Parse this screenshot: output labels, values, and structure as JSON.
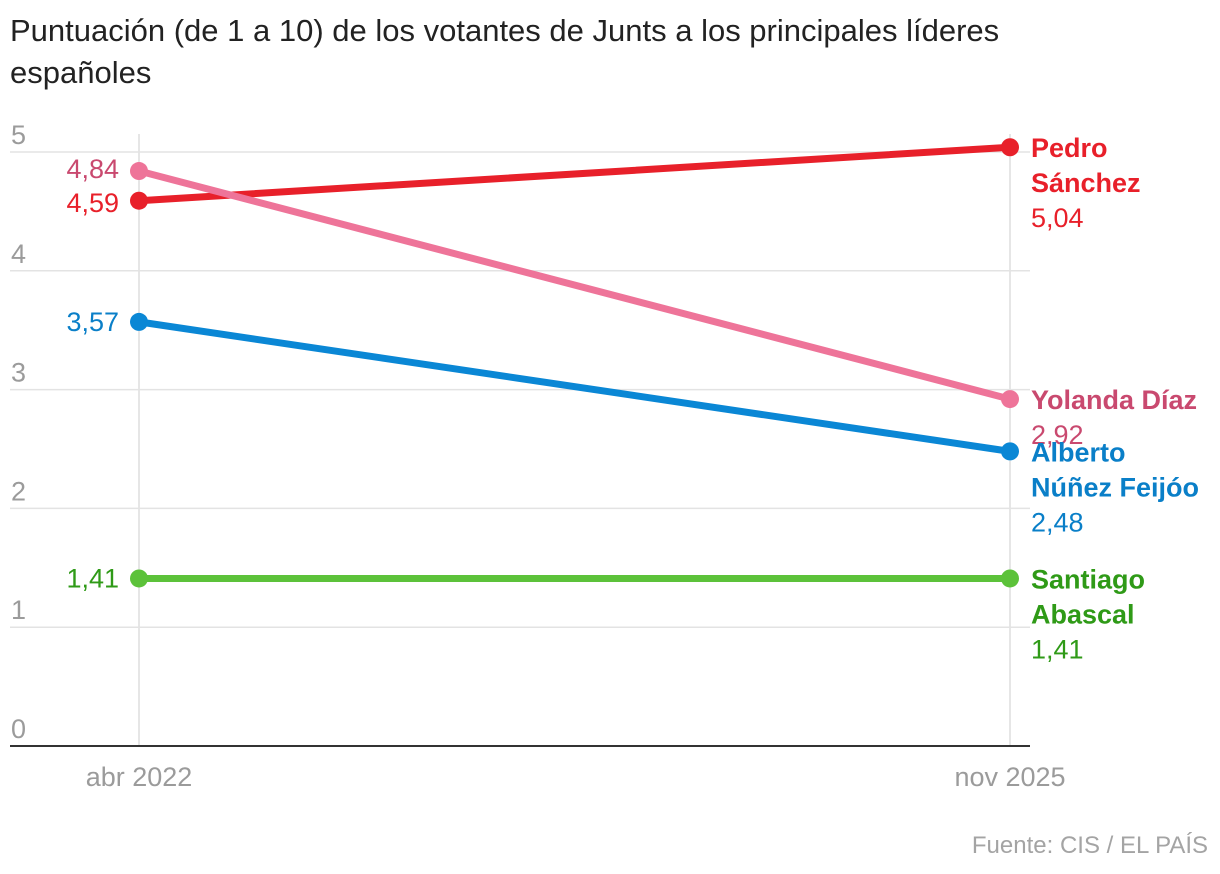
{
  "title": "Puntuación (de 1 a 10) de los votantes de Junts a los principales líderes españoles",
  "source": "Fuente: CIS / EL PAÍS",
  "chart_data": {
    "type": "line",
    "title": "Puntuación (de 1 a 10) de los votantes de Junts a los principales líderes españoles",
    "x": [
      "abr 2022",
      "nov 2025"
    ],
    "ylim": [
      0,
      5
    ],
    "yticks": [
      "0",
      "1",
      "2",
      "3",
      "4",
      "5"
    ],
    "grid": true,
    "series": [
      {
        "name": "Pedro Sánchez",
        "name_lines": [
          "Pedro",
          "Sánchez"
        ],
        "values": [
          4.59,
          5.04
        ],
        "labels": [
          "4,59",
          "5,04"
        ],
        "color": "#e8202a",
        "label_color": "#e8202a"
      },
      {
        "name": "Yolanda Díaz",
        "name_lines": [
          "Yolanda Díaz"
        ],
        "values": [
          4.84,
          2.92
        ],
        "labels": [
          "4,84",
          "2,92"
        ],
        "color": "#ee7499",
        "label_color": "#c9496f"
      },
      {
        "name": "Alberto Núñez Feijóo",
        "name_lines": [
          "Alberto",
          "Núñez Feijóo"
        ],
        "values": [
          3.57,
          2.48
        ],
        "labels": [
          "3,57",
          "2,48"
        ],
        "color": "#0a87d5",
        "label_color": "#0a7fc8"
      },
      {
        "name": "Santiago Abascal",
        "name_lines": [
          "Santiago",
          "Abascal"
        ],
        "values": [
          1.41,
          1.41
        ],
        "labels": [
          "1,41",
          "1,41"
        ],
        "color": "#5cc23a",
        "label_color": "#2f9a17"
      }
    ]
  }
}
